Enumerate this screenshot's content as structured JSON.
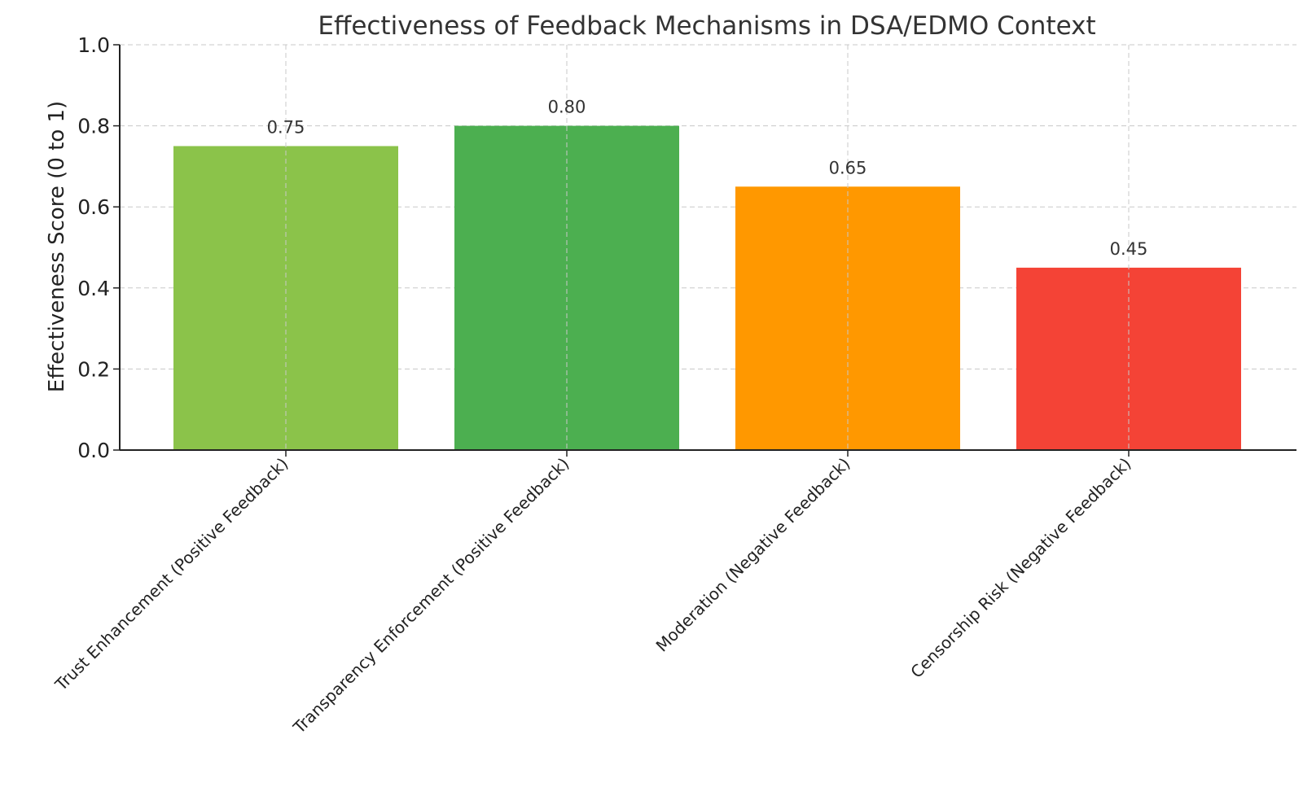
{
  "chart_data": {
    "type": "bar",
    "title": "Effectiveness of Feedback Mechanisms in DSA/EDMO Context",
    "xlabel": "",
    "ylabel": "Effectiveness Score (0 to 1)",
    "ylim": [
      0,
      1.0
    ],
    "yticks": [
      "0.0",
      "0.2",
      "0.4",
      "0.6",
      "0.8",
      "1.0"
    ],
    "grid": true,
    "categories": [
      "Trust Enhancement (Positive Feedback)",
      "Transparency Enforcement (Positive Feedback)",
      "Moderation (Negative Feedback)",
      "Censorship Risk (Negative Feedback)"
    ],
    "values": [
      0.75,
      0.8,
      0.65,
      0.45
    ],
    "value_labels": [
      "0.75",
      "0.80",
      "0.65",
      "0.45"
    ],
    "colors": [
      "#8bc34a",
      "#4caf50",
      "#ff9800",
      "#f44336"
    ]
  }
}
